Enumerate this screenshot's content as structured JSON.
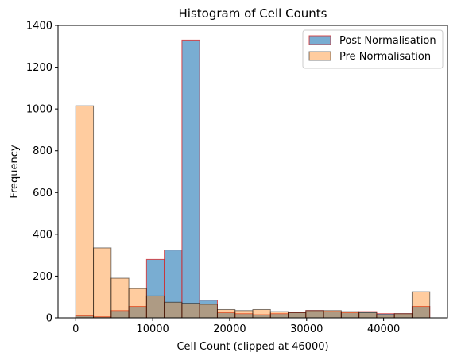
{
  "chart_data": {
    "type": "bar",
    "title": "Histogram of Cell Counts",
    "xlabel": "Cell Count (clipped at 46000)",
    "ylabel": "Frequency",
    "xlim": [
      -2300,
      48300
    ],
    "ylim": [
      0,
      1400
    ],
    "xticks": [
      0,
      10000,
      20000,
      30000,
      40000
    ],
    "yticks": [
      0,
      200,
      400,
      600,
      800,
      1000,
      1200,
      1400
    ],
    "bin_edges": [
      0,
      2300,
      4600,
      6900,
      9200,
      11500,
      13800,
      16100,
      18400,
      20700,
      23000,
      25300,
      27600,
      29900,
      32200,
      34500,
      36800,
      39100,
      41400,
      43700,
      46000
    ],
    "legend_placement": "top-right",
    "series": [
      {
        "name": "Post Normalisation",
        "color": "#1f77b4",
        "edgecolor": "#d62728",
        "values": [
          10,
          5,
          35,
          55,
          280,
          325,
          1330,
          85,
          25,
          20,
          15,
          20,
          25,
          35,
          30,
          25,
          30,
          20,
          20,
          55
        ]
      },
      {
        "name": "Pre Normalisation",
        "color": "#ff7f0e",
        "edgecolor": "#000000",
        "values": [
          1015,
          335,
          190,
          140,
          105,
          75,
          70,
          65,
          40,
          35,
          40,
          30,
          25,
          35,
          35,
          30,
          25,
          15,
          20,
          125
        ]
      }
    ]
  }
}
